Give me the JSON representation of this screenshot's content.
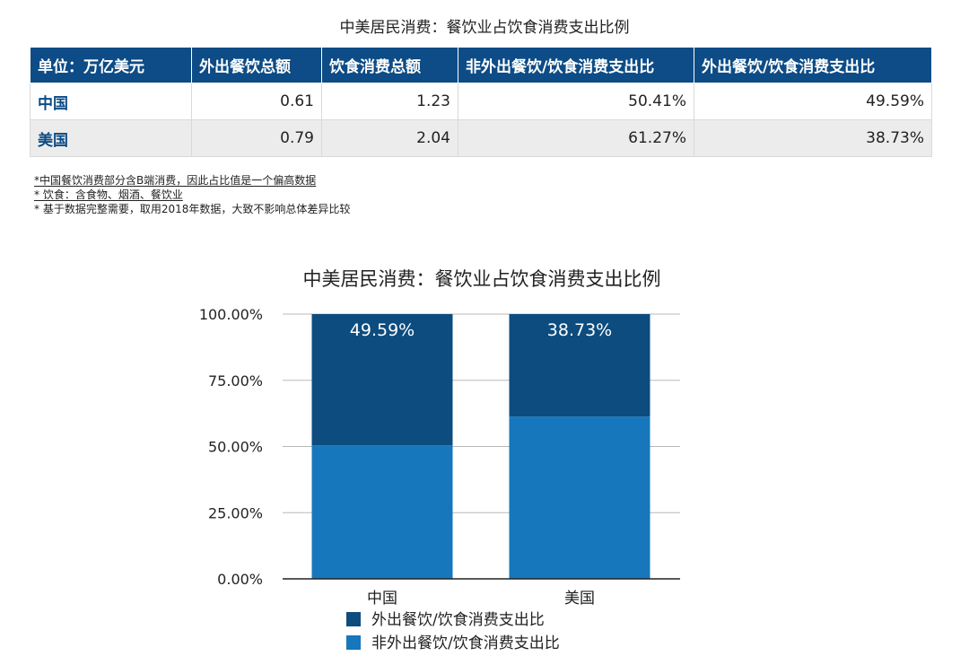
{
  "table": {
    "title": "中美居民消费：餐饮业占饮食消费支出比例",
    "headers": [
      "单位：万亿美元",
      "外出餐饮总额",
      "饮食消费总额",
      "非外出餐饮/饮食消费支出比",
      "外出餐饮/饮食消费支出比"
    ],
    "rows": [
      [
        "中国",
        "0.61",
        "1.23",
        "50.41%",
        "49.59%"
      ],
      [
        "美国",
        "0.79",
        "2.04",
        "61.27%",
        "38.73%"
      ]
    ]
  },
  "notes": [
    "*中国餐饮消费部分含B端消费，因此占比值是一个偏高数据",
    "* 饮食：含食物、烟酒、餐饮业",
    "* 基于数据完整需要，取用2018年数据，大致不影响总体差异比较"
  ],
  "colors": {
    "header_bg": "#0d4c86",
    "dark_series": "#0d4c7f",
    "light_series": "#1677bc"
  },
  "chart_data": {
    "type": "bar",
    "stacked": true,
    "title": "中美居民消费：餐饮业占饮食消费支出比例",
    "categories": [
      "中国",
      "美国"
    ],
    "series": [
      {
        "name": "非外出餐饮/饮食消费支出比",
        "values": [
          50.41,
          61.27
        ],
        "color": "#1677bc"
      },
      {
        "name": "外出餐饮/饮食消费支出比",
        "values": [
          49.59,
          38.73
        ],
        "color": "#0d4c7f",
        "labels": [
          "49.59%",
          "38.73%"
        ]
      }
    ],
    "yticks": [
      "0.00%",
      "25.00%",
      "50.00%",
      "75.00%",
      "100.00%"
    ],
    "ylim": [
      0,
      100
    ],
    "grid": true,
    "legend": [
      "外出餐饮/饮食消费支出比",
      "非外出餐饮/饮食消费支出比"
    ],
    "legend_position": "bottom"
  }
}
